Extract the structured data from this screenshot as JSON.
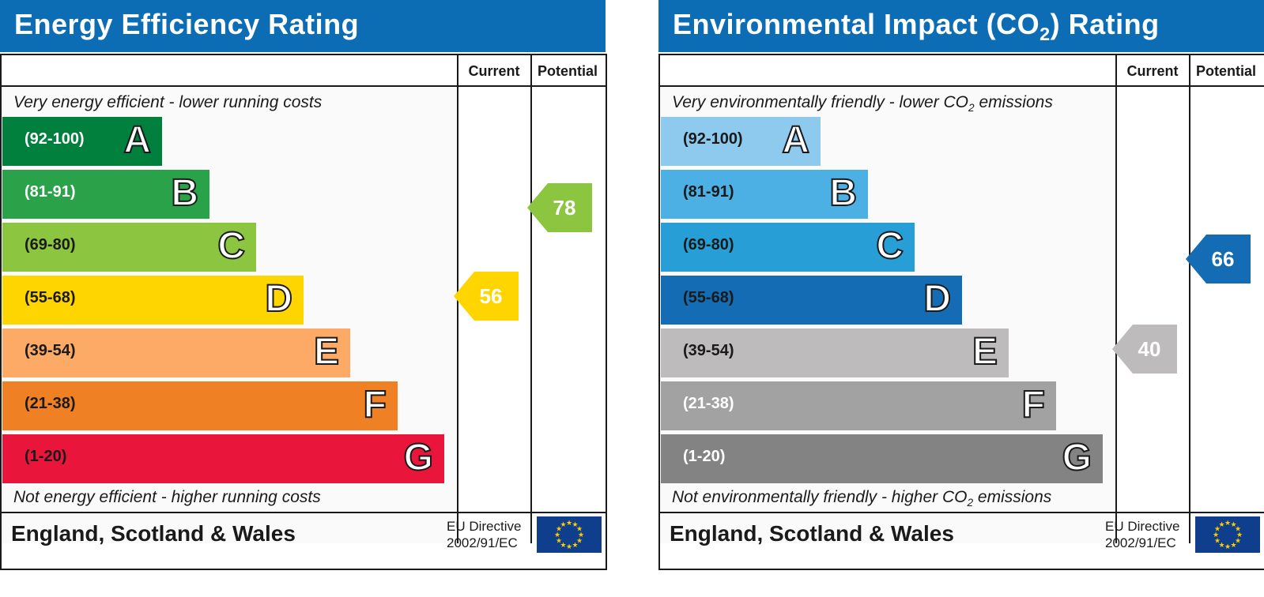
{
  "panels": [
    {
      "title": "Energy Efficiency Rating",
      "title_sub": "",
      "title_suffix": "",
      "columns": {
        "current": "Current",
        "potential": "Potential"
      },
      "top_note": "Very energy efficient - lower running costs",
      "top_note_sub": "",
      "top_note_suffix": "",
      "bottom_note": "Not energy efficient - higher running costs",
      "bottom_note_sub": "",
      "bottom_note_suffix": "",
      "footer": "England, Scotland & Wales",
      "eu_line1": "EU Directive",
      "eu_line2": "2002/91/EC",
      "bands": [
        {
          "range": "(92-100)",
          "letter": "A",
          "color": "#007f3d",
          "text_color": "#ffffff"
        },
        {
          "range": "(81-91)",
          "letter": "B",
          "color": "#2aa24a",
          "text_color": "#ffffff"
        },
        {
          "range": "(69-80)",
          "letter": "C",
          "color": "#8cc53f",
          "text_color": "#1a1a1a"
        },
        {
          "range": "(55-68)",
          "letter": "D",
          "color": "#ffd500",
          "text_color": "#1a1a1a"
        },
        {
          "range": "(39-54)",
          "letter": "E",
          "color": "#fcaa65",
          "text_color": "#1a1a1a"
        },
        {
          "range": "(21-38)",
          "letter": "F",
          "color": "#ef8023",
          "text_color": "#1a1a1a"
        },
        {
          "range": "(1-20)",
          "letter": "G",
          "color": "#e9153b",
          "text_color": "#1a1a1a"
        }
      ],
      "current": {
        "value": "56",
        "color": "#ffd500"
      },
      "potential": {
        "value": "78",
        "color": "#8cc53f"
      }
    },
    {
      "title": "Environmental Impact (CO",
      "title_sub": "2",
      "title_suffix": ") Rating",
      "columns": {
        "current": "Current",
        "potential": "Potential"
      },
      "top_note": "Very environmentally friendly - lower CO",
      "top_note_sub": "2",
      "top_note_suffix": " emissions",
      "bottom_note": "Not environmentally friendly - higher CO",
      "bottom_note_sub": "2",
      "bottom_note_suffix": " emissions",
      "footer": "England, Scotland & Wales",
      "eu_line1": "EU Directive",
      "eu_line2": "2002/91/EC",
      "bands": [
        {
          "range": "(92-100)",
          "letter": "A",
          "color": "#8ec9ee",
          "text_color": "#1a1a1a"
        },
        {
          "range": "(81-91)",
          "letter": "B",
          "color": "#4db0e4",
          "text_color": "#1a1a1a"
        },
        {
          "range": "(69-80)",
          "letter": "C",
          "color": "#279fd6",
          "text_color": "#1a1a1a"
        },
        {
          "range": "(55-68)",
          "letter": "D",
          "color": "#146cb4",
          "text_color": "#1a1a1a"
        },
        {
          "range": "(39-54)",
          "letter": "E",
          "color": "#bdbbbb",
          "text_color": "#1a1a1a"
        },
        {
          "range": "(21-38)",
          "letter": "F",
          "color": "#a2a2a2",
          "text_color": "#ffffff"
        },
        {
          "range": "(1-20)",
          "letter": "G",
          "color": "#838383",
          "text_color": "#ffffff"
        }
      ],
      "current": {
        "value": "40",
        "color": "#bdbbbb"
      },
      "potential": {
        "value": "66",
        "color": "#146cb4"
      }
    }
  ],
  "chart_data": [
    {
      "type": "bar",
      "title": "Energy Efficiency Rating",
      "categories": [
        "A",
        "B",
        "C",
        "D",
        "E",
        "F",
        "G"
      ],
      "ranges": [
        "92-100",
        "81-91",
        "69-80",
        "55-68",
        "39-54",
        "21-38",
        "1-20"
      ],
      "current": 56,
      "potential": 78
    },
    {
      "type": "bar",
      "title": "Environmental Impact (CO2) Rating",
      "categories": [
        "A",
        "B",
        "C",
        "D",
        "E",
        "F",
        "G"
      ],
      "ranges": [
        "92-100",
        "81-91",
        "69-80",
        "55-68",
        "39-54",
        "21-38",
        "1-20"
      ],
      "current": 40,
      "potential": 66
    }
  ]
}
